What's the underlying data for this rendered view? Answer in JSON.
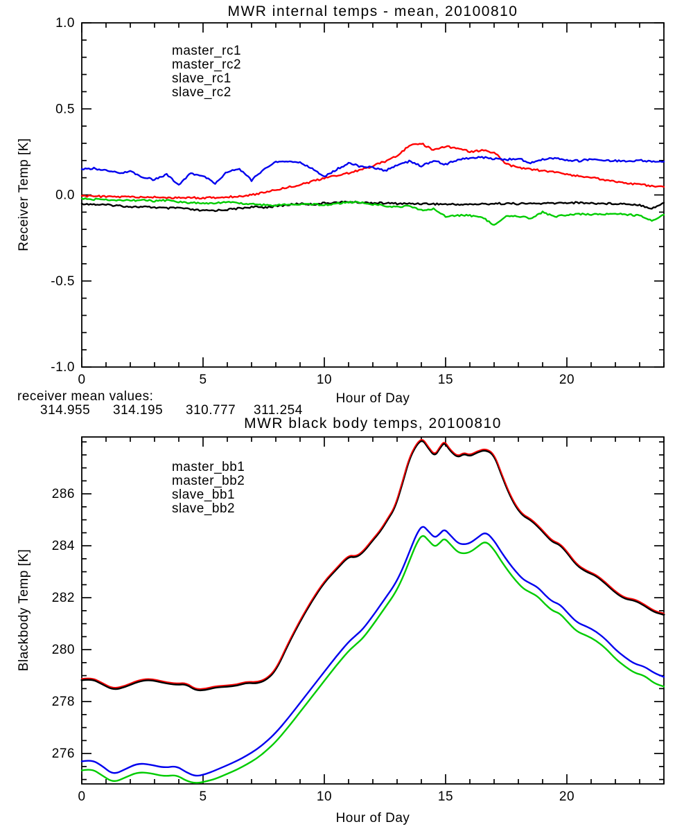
{
  "figure": {
    "background": "#ffffff",
    "annotation": {
      "label": "receiver mean values:",
      "values": [
        {
          "text": "314.955",
          "color": "#000000"
        },
        {
          "text": "314.195",
          "color": "#ff0000"
        },
        {
          "text": "310.777",
          "color": "#0000ee"
        },
        {
          "text": "311.254",
          "color": "#00cc00"
        }
      ]
    }
  },
  "chart_data": [
    {
      "type": "line",
      "title": "MWR internal temps - mean, 20100810",
      "xlabel": "Hour of Day",
      "ylabel": "Receiver Temp [K]",
      "xlim": [
        0,
        24
      ],
      "ylim": [
        -1.0,
        1.0
      ],
      "grid": false,
      "legend_position": "upper-left-inside",
      "xticks": {
        "major": [
          0,
          5,
          10,
          15,
          20
        ],
        "labels": [
          "0",
          "5",
          "10",
          "15",
          "20"
        ],
        "minor_step": 1
      },
      "yticks": {
        "major": [
          1.0,
          0.5,
          0.0,
          -0.5,
          -1.0
        ],
        "labels": [
          "1.0",
          "0.5",
          "0.0",
          "-0.5",
          "-1.0"
        ],
        "minor_step": 0.1
      },
      "x": [
        0,
        0.5,
        1,
        1.5,
        2,
        2.5,
        3,
        3.5,
        4,
        4.5,
        5,
        5.5,
        6,
        6.5,
        7,
        7.5,
        8,
        8.5,
        9,
        9.5,
        10,
        10.5,
        11,
        11.5,
        12,
        12.5,
        13,
        13.5,
        14,
        14.5,
        15,
        15.5,
        16,
        16.5,
        17,
        17.5,
        18,
        18.5,
        19,
        19.5,
        20,
        20.5,
        21,
        21.5,
        22,
        22.5,
        23,
        23.5,
        24
      ],
      "series": [
        {
          "name": "master_rc1",
          "color": "#000000",
          "y": [
            -0.05,
            -0.055,
            -0.058,
            -0.062,
            -0.068,
            -0.07,
            -0.072,
            -0.078,
            -0.075,
            -0.085,
            -0.092,
            -0.09,
            -0.085,
            -0.078,
            -0.07,
            -0.072,
            -0.065,
            -0.058,
            -0.05,
            -0.055,
            -0.048,
            -0.044,
            -0.04,
            -0.044,
            -0.046,
            -0.048,
            -0.05,
            -0.051,
            -0.05,
            -0.052,
            -0.054,
            -0.055,
            -0.055,
            -0.053,
            -0.05,
            -0.05,
            -0.051,
            -0.05,
            -0.05,
            -0.048,
            -0.045,
            -0.045,
            -0.048,
            -0.05,
            -0.05,
            -0.052,
            -0.058,
            -0.078,
            -0.048
          ]
        },
        {
          "name": "master_rc2",
          "color": "#ff0000",
          "y": [
            -0.005,
            -0.008,
            -0.01,
            -0.012,
            -0.01,
            -0.015,
            -0.012,
            -0.015,
            -0.018,
            -0.015,
            -0.018,
            -0.015,
            -0.012,
            -0.008,
            0.0,
            0.015,
            0.03,
            0.045,
            0.06,
            0.078,
            0.098,
            0.112,
            0.128,
            0.145,
            0.168,
            0.195,
            0.23,
            0.285,
            0.3,
            0.26,
            0.283,
            0.27,
            0.252,
            0.258,
            0.248,
            0.18,
            0.158,
            0.15,
            0.14,
            0.132,
            0.12,
            0.11,
            0.1,
            0.09,
            0.078,
            0.068,
            0.06,
            0.052,
            0.045
          ]
        },
        {
          "name": "slave_rc1",
          "color": "#0000ee",
          "y": [
            0.15,
            0.155,
            0.142,
            0.128,
            0.135,
            0.105,
            0.088,
            0.12,
            0.06,
            0.125,
            0.11,
            0.068,
            0.135,
            0.152,
            0.085,
            0.15,
            0.19,
            0.195,
            0.188,
            0.152,
            0.105,
            0.148,
            0.185,
            0.165,
            0.16,
            0.14,
            0.172,
            0.195,
            0.168,
            0.2,
            0.178,
            0.205,
            0.215,
            0.218,
            0.21,
            0.205,
            0.212,
            0.185,
            0.208,
            0.215,
            0.202,
            0.198,
            0.208,
            0.2,
            0.198,
            0.195,
            0.2,
            0.195,
            0.195
          ]
        },
        {
          "name": "slave_rc2",
          "color": "#00cc00",
          "y": [
            -0.02,
            -0.025,
            -0.03,
            -0.028,
            -0.032,
            -0.03,
            -0.035,
            -0.032,
            -0.04,
            -0.045,
            -0.05,
            -0.045,
            -0.042,
            -0.048,
            -0.052,
            -0.058,
            -0.06,
            -0.055,
            -0.052,
            -0.055,
            -0.058,
            -0.05,
            -0.042,
            -0.045,
            -0.055,
            -0.062,
            -0.07,
            -0.065,
            -0.088,
            -0.082,
            -0.125,
            -0.118,
            -0.12,
            -0.13,
            -0.175,
            -0.12,
            -0.122,
            -0.138,
            -0.1,
            -0.128,
            -0.115,
            -0.11,
            -0.112,
            -0.115,
            -0.11,
            -0.115,
            -0.12,
            -0.15,
            -0.112
          ]
        }
      ]
    },
    {
      "type": "line",
      "title": "MWR black body temps, 20100810",
      "xlabel": "Hour of Day",
      "ylabel": "Blackbody Temp [K]",
      "xlim": [
        0,
        24
      ],
      "ylim": [
        274.83,
        288.19
      ],
      "grid": false,
      "legend_position": "upper-left-inside",
      "xticks": {
        "major": [
          0,
          5,
          10,
          15,
          20
        ],
        "labels": [
          "0",
          "5",
          "10",
          "15",
          "20"
        ],
        "minor_step": 1
      },
      "yticks": {
        "major": [
          276,
          278,
          280,
          282,
          284,
          286
        ],
        "labels": [
          "276",
          "278",
          "280",
          "282",
          "284",
          "286"
        ],
        "minor_step": 0.5
      },
      "x": [
        0,
        0.4,
        0.8,
        1.3,
        1.8,
        2.3,
        2.8,
        3.4,
        3.9,
        4.3,
        4.7,
        5.1,
        5.5,
        6.0,
        6.4,
        6.8,
        7.2,
        7.6,
        8.0,
        8.5,
        9.0,
        9.5,
        10.0,
        10.5,
        11.0,
        11.3,
        11.6,
        12.0,
        12.3,
        12.6,
        12.9,
        13.2,
        13.5,
        13.8,
        14.05,
        14.3,
        14.55,
        14.75,
        14.95,
        15.2,
        15.5,
        15.75,
        16.0,
        16.3,
        16.65,
        17.0,
        17.3,
        17.6,
        17.9,
        18.2,
        18.5,
        18.8,
        19.1,
        19.4,
        19.7,
        20.0,
        20.4,
        20.8,
        21.2,
        21.6,
        22.0,
        22.4,
        22.8,
        23.2,
        23.6,
        24.0
      ],
      "series": [
        {
          "name": "master_bb1",
          "color": "#000000",
          "y": [
            278.83,
            278.88,
            278.7,
            278.45,
            278.57,
            278.77,
            278.85,
            278.72,
            278.65,
            278.68,
            278.43,
            278.45,
            278.55,
            278.58,
            278.62,
            278.73,
            278.7,
            278.83,
            279.2,
            280.2,
            281.1,
            281.9,
            282.6,
            283.1,
            283.6,
            283.55,
            283.75,
            284.22,
            284.55,
            285.0,
            285.45,
            286.35,
            287.35,
            287.9,
            288.1,
            287.75,
            287.45,
            287.75,
            288.0,
            287.65,
            287.4,
            287.55,
            287.45,
            287.6,
            287.7,
            287.5,
            286.75,
            286.05,
            285.5,
            285.15,
            285.0,
            284.75,
            284.45,
            284.15,
            284.05,
            283.75,
            283.25,
            283.0,
            282.85,
            282.55,
            282.2,
            281.95,
            281.9,
            281.7,
            281.45,
            281.35
          ]
        },
        {
          "name": "master_bb2",
          "color": "#ff0000",
          "y": [
            278.88,
            278.93,
            278.75,
            278.5,
            278.62,
            278.82,
            278.9,
            278.77,
            278.7,
            278.73,
            278.48,
            278.5,
            278.6,
            278.63,
            278.67,
            278.78,
            278.75,
            278.88,
            279.25,
            280.25,
            281.15,
            281.95,
            282.65,
            283.15,
            283.65,
            283.6,
            283.8,
            284.27,
            284.6,
            285.05,
            285.5,
            286.4,
            287.4,
            287.95,
            288.15,
            287.8,
            287.5,
            287.8,
            288.05,
            287.7,
            287.45,
            287.6,
            287.5,
            287.65,
            287.75,
            287.55,
            286.8,
            286.1,
            285.55,
            285.2,
            285.05,
            284.8,
            284.5,
            284.2,
            284.1,
            283.8,
            283.3,
            283.05,
            282.9,
            282.6,
            282.25,
            282.0,
            281.95,
            281.75,
            281.5,
            281.4
          ]
        },
        {
          "name": "slave_bb1",
          "color": "#0000ee",
          "y": [
            275.7,
            275.76,
            275.55,
            275.18,
            275.4,
            275.62,
            275.58,
            275.45,
            275.52,
            275.28,
            275.12,
            275.2,
            275.35,
            275.55,
            275.72,
            275.92,
            276.15,
            276.45,
            276.8,
            277.35,
            277.95,
            278.55,
            279.15,
            279.75,
            280.3,
            280.55,
            280.8,
            281.3,
            281.7,
            282.1,
            282.5,
            283.05,
            283.75,
            284.45,
            284.8,
            284.55,
            284.3,
            284.45,
            284.65,
            284.4,
            284.1,
            284.05,
            284.1,
            284.3,
            284.55,
            284.2,
            283.75,
            283.35,
            283.0,
            282.7,
            282.55,
            282.4,
            282.1,
            281.85,
            281.75,
            281.45,
            281.05,
            280.9,
            280.7,
            280.4,
            280.0,
            279.7,
            279.45,
            279.35,
            279.1,
            278.95
          ]
        },
        {
          "name": "slave_bb2",
          "color": "#00cc00",
          "y": [
            275.35,
            275.42,
            275.18,
            274.88,
            275.08,
            275.28,
            275.25,
            275.12,
            275.18,
            274.95,
            274.85,
            274.92,
            275.02,
            275.22,
            275.38,
            275.58,
            275.8,
            276.1,
            276.45,
            277.0,
            277.6,
            278.2,
            278.8,
            279.4,
            279.95,
            280.2,
            280.45,
            280.95,
            281.35,
            281.75,
            282.15,
            282.7,
            283.4,
            284.1,
            284.45,
            284.2,
            283.95,
            284.1,
            284.3,
            284.05,
            283.75,
            283.7,
            283.75,
            283.95,
            284.2,
            283.85,
            283.4,
            283.0,
            282.65,
            282.35,
            282.2,
            282.05,
            281.75,
            281.5,
            281.4,
            281.1,
            280.7,
            280.55,
            280.35,
            280.05,
            279.65,
            279.35,
            279.1,
            279.0,
            278.7,
            278.58
          ]
        }
      ]
    }
  ]
}
